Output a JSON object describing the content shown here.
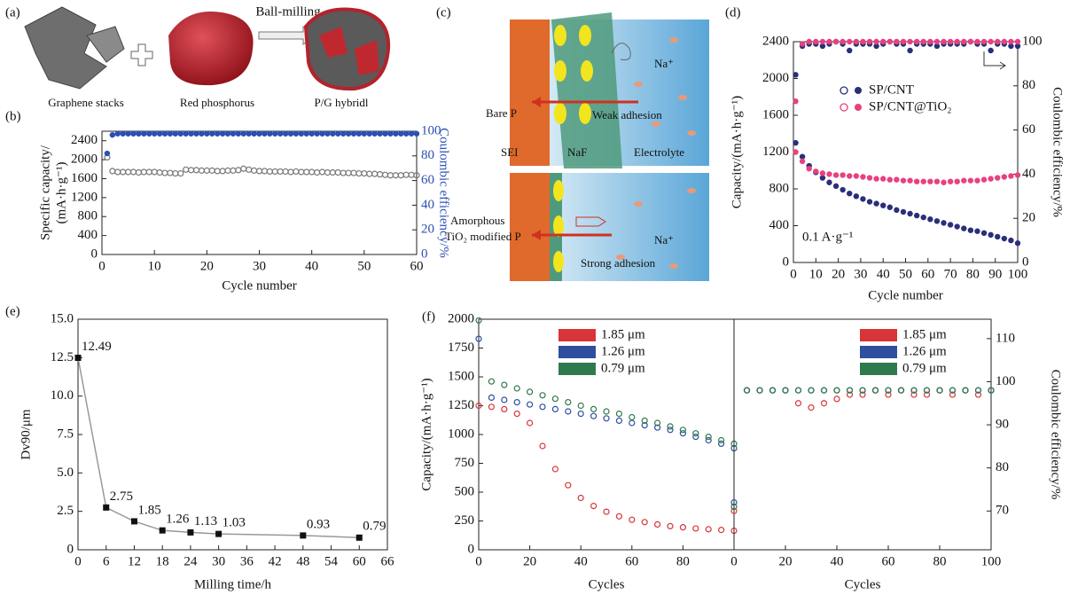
{
  "panel_a": {
    "label": "(a)",
    "graphene": "Graphene stacks",
    "phosphorus": "Red phosphorus",
    "hybrid": "P/G hybridl",
    "process": "Ball-milling"
  },
  "panel_c": {
    "label": "(c)",
    "bare": "Bare P",
    "weak": "Weak adhesion",
    "ion_top": "Na⁺",
    "ion_bottom": "Na⁺",
    "sei": "SEI",
    "naf": "NaF",
    "electrolyte": "Electrolyte",
    "modified_1": "Amorphous",
    "modified_2": "TiO₂ modified P",
    "strong": "Strong adhesion"
  },
  "chart_data": [
    {
      "type": "scatter",
      "panel_label": "(b)",
      "xlabel": "Cycle number",
      "ylabel": [
        "Specific capacity/",
        "(mA·h·g⁻¹)"
      ],
      "y2label": "Coulombic efficiency/%",
      "y2_color": "#2b4fb3",
      "xlim": [
        0,
        60
      ],
      "xticks": [
        0,
        10,
        20,
        30,
        40,
        50,
        60
      ],
      "ylim": [
        0,
        2600
      ],
      "yticks": [
        0,
        400,
        800,
        1200,
        1600,
        2000,
        2400
      ],
      "y2lim": [
        0,
        100
      ],
      "y2ticks": [
        0,
        20,
        40,
        60,
        80,
        100
      ],
      "x": [
        1,
        2,
        3,
        4,
        5,
        6,
        7,
        8,
        9,
        10,
        11,
        12,
        13,
        14,
        15,
        16,
        17,
        18,
        19,
        20,
        21,
        22,
        23,
        24,
        25,
        26,
        27,
        28,
        29,
        30,
        31,
        32,
        33,
        34,
        35,
        36,
        37,
        38,
        39,
        40,
        41,
        42,
        43,
        44,
        45,
        46,
        47,
        48,
        49,
        50,
        51,
        52,
        53,
        54,
        55,
        56,
        57,
        58,
        59,
        60
      ],
      "series": [
        {
          "color": "#777777",
          "marker": "open-circle",
          "values": [
            2050,
            1760,
            1740,
            1740,
            1740,
            1740,
            1730,
            1740,
            1740,
            1740,
            1730,
            1720,
            1720,
            1710,
            1710,
            1790,
            1780,
            1780,
            1770,
            1770,
            1770,
            1760,
            1760,
            1770,
            1770,
            1780,
            1810,
            1790,
            1770,
            1760,
            1760,
            1750,
            1750,
            1750,
            1750,
            1740,
            1750,
            1740,
            1740,
            1740,
            1730,
            1740,
            1730,
            1730,
            1730,
            1720,
            1720,
            1720,
            1710,
            1710,
            1700,
            1700,
            1690,
            1680,
            1670,
            1670,
            1670,
            1680,
            1680,
            1670
          ]
        },
        {
          "color": "#2b4fb3",
          "marker": "filled-circle",
          "axis": "y2",
          "values": [
            82,
            97,
            98,
            98,
            98,
            98,
            98,
            98,
            98,
            98,
            98,
            98,
            98,
            98,
            98,
            98,
            98,
            98,
            98,
            98,
            98,
            98,
            98,
            98,
            98,
            98,
            98,
            98,
            98,
            98,
            98,
            98,
            98,
            98,
            98,
            98,
            98,
            98,
            98,
            98,
            98,
            98,
            98,
            98,
            98,
            98,
            98,
            98,
            98,
            98,
            98,
            98,
            98,
            98,
            98,
            98,
            98,
            98,
            98,
            98
          ]
        }
      ]
    },
    {
      "type": "scatter",
      "panel_label": "(d)",
      "xlabel": "Cycle number",
      "ylabel": "Capacity/(mA·h·g⁻¹)",
      "y2label": "Coulombic efficiency/%",
      "annotation": "0.1 A·g⁻¹",
      "xlim": [
        0,
        100
      ],
      "xticks": [
        0,
        10,
        20,
        30,
        40,
        50,
        60,
        70,
        80,
        90,
        100
      ],
      "ylim": [
        0,
        2400
      ],
      "yticks": [
        0,
        400,
        800,
        1200,
        1600,
        2000,
        2400
      ],
      "y2lim": [
        0,
        100
      ],
      "y2ticks": [
        0,
        20,
        40,
        60,
        80,
        100
      ],
      "x": [
        1,
        4,
        7,
        10,
        13,
        16,
        19,
        22,
        25,
        28,
        31,
        34,
        37,
        40,
        43,
        46,
        49,
        52,
        55,
        58,
        61,
        64,
        67,
        70,
        73,
        76,
        79,
        82,
        85,
        88,
        91,
        94,
        97,
        100
      ],
      "series": [
        {
          "name": "SP/CNT",
          "color": "#2a2f7a",
          "marker": "filled-circle",
          "values": [
            1300,
            1150,
            1050,
            980,
            920,
            870,
            830,
            790,
            750,
            720,
            690,
            660,
            640,
            620,
            600,
            570,
            550,
            530,
            510,
            490,
            470,
            450,
            430,
            410,
            390,
            370,
            350,
            340,
            320,
            300,
            280,
            260,
            240,
            210
          ]
        },
        {
          "name": "SP/CNT@TiO₂",
          "color": "#e8417f",
          "marker": "filled-circle",
          "values": [
            1200,
            1100,
            1020,
            990,
            970,
            960,
            950,
            950,
            940,
            940,
            930,
            920,
            910,
            910,
            900,
            900,
            890,
            890,
            880,
            880,
            880,
            880,
            870,
            880,
            880,
            890,
            890,
            890,
            900,
            910,
            920,
            930,
            940,
            950
          ]
        },
        {
          "color": "#2a2f7a",
          "marker": "filled-circle",
          "axis": "y2",
          "values": [
            85,
            98,
            99,
            99,
            98,
            99,
            100,
            99,
            96,
            99,
            99,
            99,
            98,
            99,
            100,
            99,
            99,
            96,
            99,
            99,
            99,
            98,
            99,
            99,
            99,
            99,
            100,
            99,
            99,
            96,
            99,
            99,
            98,
            98
          ]
        },
        {
          "color": "#e8417f",
          "marker": "filled-circle",
          "axis": "y2",
          "values": [
            73,
            99,
            100,
            100,
            100,
            100,
            100,
            100,
            100,
            100,
            100,
            100,
            100,
            100,
            100,
            100,
            100,
            100,
            100,
            100,
            100,
            100,
            100,
            100,
            100,
            100,
            100,
            100,
            100,
            100,
            100,
            100,
            100,
            100
          ]
        }
      ]
    },
    {
      "type": "line",
      "panel_label": "(e)",
      "xlabel": "Milling time/h",
      "ylabel": "Dv90/μm",
      "color": "#555555",
      "xlim": [
        0,
        66
      ],
      "xticks": [
        0,
        6,
        12,
        18,
        24,
        30,
        36,
        42,
        48,
        54,
        60,
        66
      ],
      "ylim": [
        0,
        15
      ],
      "yticks": [
        0,
        2.5,
        {
          "value": 5,
          "label": "5.0"
        },
        7.5,
        {
          "value": 10,
          "label": "10.0"
        },
        12.5,
        {
          "value": 15,
          "label": "15.0"
        }
      ],
      "x": [
        0,
        6,
        12,
        18,
        24,
        30,
        48,
        60
      ],
      "values": [
        12.49,
        2.75,
        1.85,
        1.26,
        1.13,
        1.03,
        0.93,
        0.79
      ]
    },
    {
      "type": "scatter",
      "panel_label": "(f)",
      "xlabel": "Cycles",
      "ylabel": "Capacity/(mA·h·g⁻¹)",
      "xlim": [
        0,
        100
      ],
      "xticks": [
        0,
        20,
        40,
        60,
        80
      ],
      "ylim": [
        0,
        2000
      ],
      "yticks": [
        0,
        250,
        500,
        750,
        1000,
        1250,
        1500,
        1750,
        2000
      ],
      "x": [
        0,
        5,
        10,
        15,
        20,
        25,
        30,
        35,
        40,
        45,
        50,
        55,
        60,
        65,
        70,
        75,
        80,
        85,
        90,
        95,
        100
      ],
      "series": [
        {
          "name": "1.85 μm",
          "color": "#d8353a",
          "marker": "open-circle",
          "values": [
            1250,
            1240,
            1220,
            1180,
            1100,
            900,
            700,
            560,
            450,
            380,
            330,
            290,
            260,
            240,
            220,
            205,
            195,
            185,
            178,
            172,
            165
          ]
        },
        {
          "name": "1.26 μm",
          "color": "#2d4f9e",
          "marker": "open-circle",
          "values": [
            1830,
            1320,
            1300,
            1280,
            1260,
            1240,
            1220,
            1200,
            1180,
            1160,
            1140,
            1120,
            1100,
            1080,
            1060,
            1040,
            1010,
            980,
            950,
            920,
            880
          ]
        },
        {
          "name": "0.79 μm",
          "color": "#2f7a4c",
          "marker": "open-circle",
          "values": [
            1990,
            1460,
            1430,
            1400,
            1370,
            1340,
            1310,
            1280,
            1250,
            1220,
            1200,
            1180,
            1150,
            1120,
            1100,
            1070,
            1040,
            1010,
            980,
            950,
            920
          ]
        }
      ]
    },
    {
      "type": "scatter",
      "xlabel": "Cycles",
      "y2label": "Coulombic efficiency/%",
      "xlim": [
        0,
        100
      ],
      "xticks": [
        0,
        20,
        40,
        60,
        80,
        100
      ],
      "y2lim": [
        61,
        114.5
      ],
      "y2ticks": [
        70,
        80,
        90,
        100,
        110
      ],
      "x": [
        0,
        5,
        10,
        15,
        20,
        25,
        30,
        35,
        40,
        45,
        50,
        55,
        60,
        65,
        70,
        75,
        80,
        85,
        90,
        95,
        100
      ],
      "series": [
        {
          "name": "1.85 μm",
          "color": "#d8353a",
          "marker": "open-circle",
          "axis": "y2",
          "values": [
            70,
            98,
            98,
            98,
            98,
            95,
            94,
            95,
            96,
            97,
            97,
            98,
            97,
            98,
            97,
            97,
            98,
            97,
            98,
            97,
            98
          ]
        },
        {
          "name": "1.26 μm",
          "color": "#2d4f9e",
          "marker": "open-circle",
          "axis": "y2",
          "values": [
            72,
            98,
            98,
            98,
            98,
            98,
            98,
            98,
            98,
            98,
            98,
            98,
            98,
            98,
            98,
            98,
            98,
            98,
            98,
            98,
            98
          ]
        },
        {
          "name": "0.79 μm",
          "color": "#2f7a4c",
          "marker": "open-circle",
          "axis": "y2",
          "values": [
            71,
            98,
            98,
            98,
            98,
            98,
            98,
            98,
            98,
            98,
            98,
            98,
            98,
            98,
            98,
            98,
            98,
            98,
            98,
            98,
            98
          ]
        }
      ]
    }
  ]
}
